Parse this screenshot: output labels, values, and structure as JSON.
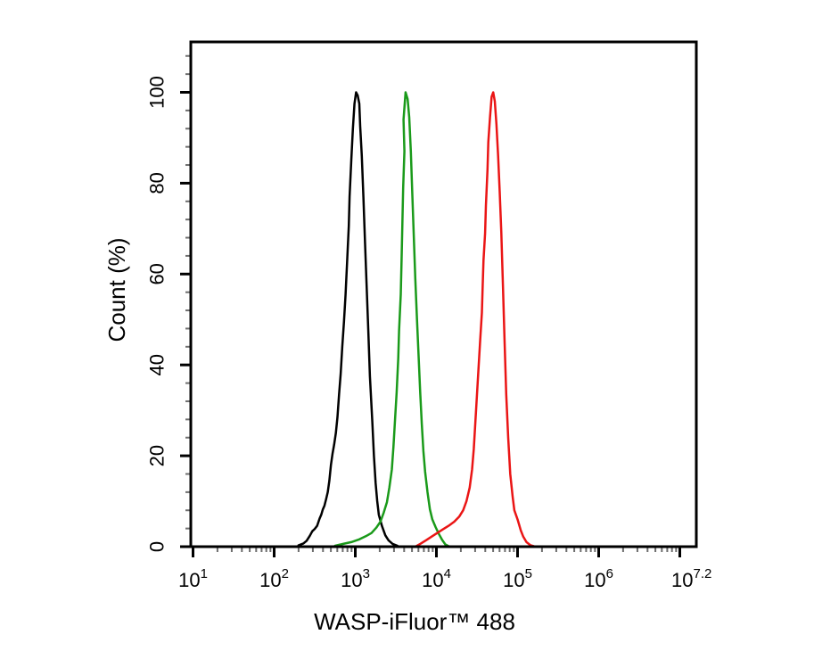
{
  "figure": {
    "background": "#ffffff"
  },
  "chart_data": {
    "type": "line",
    "subtype": "flow-cytometry-histogram",
    "title": "",
    "xlabel": "WASP-iFluor™ 488",
    "ylabel": "Count (%)",
    "x_scale": "log10",
    "x_range_log": [
      0.97,
      7.2
    ],
    "x_tick_base": "10",
    "x_ticks": [
      {
        "exp": "1",
        "decade": 1,
        "labeled": true
      },
      {
        "exp": "2",
        "decade": 2,
        "labeled": true
      },
      {
        "exp": "3",
        "decade": 3,
        "labeled": true
      },
      {
        "exp": "4",
        "decade": 4,
        "labeled": true
      },
      {
        "exp": "5",
        "decade": 5,
        "labeled": true
      },
      {
        "exp": "6",
        "decade": 6,
        "labeled": true
      },
      {
        "exp": "7",
        "decade": 7,
        "labeled": false
      },
      {
        "exp": "7.2",
        "decade": 7.2,
        "labeled": true,
        "tick": false
      }
    ],
    "y_ticks": [
      0,
      20,
      40,
      60,
      80,
      100
    ],
    "y_range": [
      0,
      111
    ],
    "y_minor_step": 4,
    "grid": false,
    "legend": "none",
    "frame": true,
    "axis_color": "#000000",
    "minor_tick_color": "#6e6e6e",
    "series": [
      {
        "name": "black-peak",
        "color": "#000000",
        "peak_x_log": 3.0,
        "peak_y_pct": 100,
        "points": [
          [
            2.3,
            0.3
          ],
          [
            2.36,
            0.7
          ],
          [
            2.4,
            1.3
          ],
          [
            2.44,
            2.4
          ],
          [
            2.47,
            3.4
          ],
          [
            2.5,
            3.9
          ],
          [
            2.53,
            4.6
          ],
          [
            2.56,
            6.2
          ],
          [
            2.58,
            7.0
          ],
          [
            2.6,
            8.2
          ],
          [
            2.62,
            9.0
          ],
          [
            2.64,
            10.4
          ],
          [
            2.66,
            12.0
          ],
          [
            2.68,
            14.5
          ],
          [
            2.7,
            18.0
          ],
          [
            2.72,
            20.5
          ],
          [
            2.74,
            22.5
          ],
          [
            2.76,
            25.0
          ],
          [
            2.78,
            28.5
          ],
          [
            2.8,
            33.5
          ],
          [
            2.82,
            38.0
          ],
          [
            2.84,
            44.0
          ],
          [
            2.86,
            49.5
          ],
          [
            2.88,
            55.5
          ],
          [
            2.9,
            63.0
          ],
          [
            2.92,
            70.5
          ],
          [
            2.93,
            77.0
          ],
          [
            2.95,
            85.0
          ],
          [
            2.97,
            92.0
          ],
          [
            2.99,
            97.5
          ],
          [
            3.01,
            100.0
          ],
          [
            3.03,
            99.3
          ],
          [
            3.05,
            97.5
          ],
          [
            3.06,
            92.5
          ],
          [
            3.08,
            86.0
          ],
          [
            3.1,
            77.0
          ],
          [
            3.12,
            67.0
          ],
          [
            3.14,
            57.5
          ],
          [
            3.16,
            47.5
          ],
          [
            3.18,
            37.5
          ],
          [
            3.21,
            27.5
          ],
          [
            3.23,
            20.0
          ],
          [
            3.25,
            14.0
          ],
          [
            3.27,
            10.0
          ],
          [
            3.29,
            7.0
          ],
          [
            3.33,
            4.5
          ],
          [
            3.37,
            2.5
          ],
          [
            3.41,
            1.4
          ],
          [
            3.46,
            0.6
          ],
          [
            3.52,
            0.2
          ]
        ]
      },
      {
        "name": "green-peak",
        "color": "#1a9a1a",
        "peak_x_log": 3.62,
        "peak_y_pct": 100,
        "points": [
          [
            2.75,
            0.2
          ],
          [
            2.85,
            0.6
          ],
          [
            2.95,
            1.0
          ],
          [
            3.05,
            1.6
          ],
          [
            3.13,
            2.3
          ],
          [
            3.2,
            3.0
          ],
          [
            3.26,
            4.2
          ],
          [
            3.31,
            5.5
          ],
          [
            3.35,
            7.5
          ],
          [
            3.39,
            9.8
          ],
          [
            3.42,
            13.0
          ],
          [
            3.45,
            17.0
          ],
          [
            3.47,
            22.0
          ],
          [
            3.49,
            28.0
          ],
          [
            3.51,
            34.0
          ],
          [
            3.53,
            41.5
          ],
          [
            3.54,
            47.5
          ],
          [
            3.56,
            55.5
          ],
          [
            3.57,
            63.0
          ],
          [
            3.58,
            71.0
          ],
          [
            3.59,
            79.0
          ],
          [
            3.605,
            87.0
          ],
          [
            3.595,
            94.0
          ],
          [
            3.62,
            100.0
          ],
          [
            3.645,
            98.5
          ],
          [
            3.665,
            94.5
          ],
          [
            3.685,
            87.0
          ],
          [
            3.7,
            79.0
          ],
          [
            3.72,
            69.0
          ],
          [
            3.74,
            59.0
          ],
          [
            3.76,
            50.0
          ],
          [
            3.78,
            42.0
          ],
          [
            3.8,
            34.0
          ],
          [
            3.82,
            27.0
          ],
          [
            3.84,
            21.0
          ],
          [
            3.86,
            16.5
          ],
          [
            3.89,
            12.0
          ],
          [
            3.92,
            8.2
          ],
          [
            3.95,
            6.0
          ],
          [
            3.99,
            4.3
          ],
          [
            4.03,
            2.8
          ],
          [
            4.07,
            1.5
          ],
          [
            4.11,
            0.5
          ],
          [
            4.15,
            0.1
          ]
        ]
      },
      {
        "name": "red-peak",
        "color": "#ea1515",
        "peak_x_log": 4.7,
        "peak_y_pct": 100,
        "points": [
          [
            3.75,
            0.1
          ],
          [
            3.8,
            0.6
          ],
          [
            3.87,
            1.4
          ],
          [
            3.94,
            2.2
          ],
          [
            4.01,
            3.0
          ],
          [
            4.08,
            3.8
          ],
          [
            4.15,
            4.6
          ],
          [
            4.22,
            5.5
          ],
          [
            4.28,
            6.6
          ],
          [
            4.33,
            8.0
          ],
          [
            4.37,
            10.0
          ],
          [
            4.41,
            13.0
          ],
          [
            4.44,
            17.0
          ],
          [
            4.46,
            21.5
          ],
          [
            4.48,
            27.5
          ],
          [
            4.5,
            33.5
          ],
          [
            4.52,
            39.5
          ],
          [
            4.54,
            45.5
          ],
          [
            4.56,
            51.5
          ],
          [
            4.57,
            57.5
          ],
          [
            4.58,
            63.0
          ],
          [
            4.6,
            69.0
          ],
          [
            4.61,
            75.0
          ],
          [
            4.63,
            83.0
          ],
          [
            4.64,
            89.0
          ],
          [
            4.66,
            94.5
          ],
          [
            4.68,
            99.0
          ],
          [
            4.7,
            100.0
          ],
          [
            4.72,
            98.0
          ],
          [
            4.74,
            93.0
          ],
          [
            4.76,
            86.0
          ],
          [
            4.78,
            78.0
          ],
          [
            4.8,
            69.0
          ],
          [
            4.82,
            57.5
          ],
          [
            4.84,
            45.5
          ],
          [
            4.86,
            33.5
          ],
          [
            4.885,
            24.0
          ],
          [
            4.91,
            16.0
          ],
          [
            4.94,
            11.0
          ],
          [
            4.96,
            8.0
          ],
          [
            5.0,
            6.0
          ],
          [
            5.02,
            4.8
          ],
          [
            5.04,
            3.6
          ],
          [
            5.07,
            2.2
          ],
          [
            5.11,
            1.0
          ],
          [
            5.16,
            0.3
          ],
          [
            5.2,
            0.1
          ]
        ]
      }
    ]
  }
}
